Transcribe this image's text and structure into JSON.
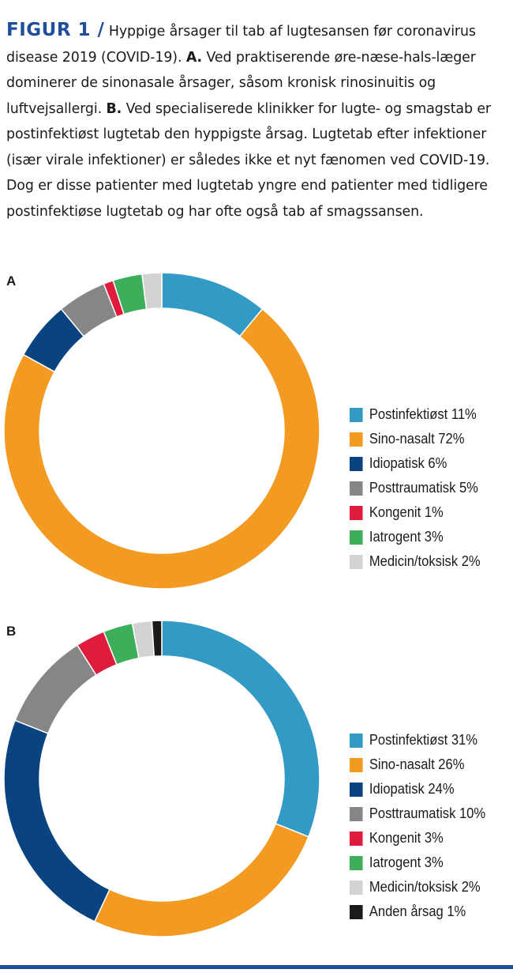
{
  "caption": {
    "label": "FIGUR 1 /",
    "text_1": " Hyppige årsager til tab af lugtesansen før corona­virus disease 2019 (COVID-19). ",
    "a_marker": "A.",
    "text_2": " Ved praktiserende øre-næse-hals-læger dominerer de sinonasale årsager, såsom kronisk rinosinuitis og luftvejsallergi. ",
    "b_marker": "B.",
    "text_3": " Ved specialiserede klinikker for lugte- og smagstab er postinfektiøst lugtetab den hyppigste årsag. Lugtetab efter infektioner (især virale infektioner) er således ikke et nyt fænomen ved COVID-19. Dog er disse patienter med lugtetab yngre end patienter med tidligere postinfektiøse lugtetab og har ofte også tab af smagssansen."
  },
  "chart_data": [
    {
      "type": "pie",
      "subtype": "donut",
      "panel": "A",
      "categories": [
        "Postinfektiøst",
        "Sino-nasalt",
        "Idiopatisk",
        "Posttraumatisk",
        "Kongenit",
        "Iatrogent",
        "Medicin/toksisk"
      ],
      "values": [
        11,
        72,
        6,
        5,
        1,
        3,
        2
      ],
      "legend_labels": [
        "Postinfektiøst 11%",
        "Sino-nasalt 72%",
        "Idiopatisk 6%",
        "Posttraumatisk 5%",
        "Kongenit 1%",
        "Iatrogent 3%",
        "Medicin/toksisk 2%"
      ],
      "colors": [
        "#3399c5",
        "#f29a22",
        "#0a4480",
        "#868686",
        "#e01c3c",
        "#3daf5a",
        "#d3d3d3"
      ],
      "legend_position": "right"
    },
    {
      "type": "pie",
      "subtype": "donut",
      "panel": "B",
      "categories": [
        "Postinfektiøst",
        "Sino-nasalt",
        "Idiopatisk",
        "Posttraumatisk",
        "Kongenit",
        "Iatrogent",
        "Medicin/toksisk",
        "Anden årsag"
      ],
      "values": [
        31,
        26,
        24,
        10,
        3,
        3,
        2,
        1
      ],
      "legend_labels": [
        "Postinfektiøst 31%",
        "Sino-nasalt 26%",
        "Idiopatisk 24%",
        "Posttraumatisk 10%",
        "Kongenit 3%",
        "Iatrogent 3%",
        "Medicin/toksisk 2%",
        "Anden årsag 1%"
      ],
      "colors": [
        "#3399c5",
        "#f29a22",
        "#0a4480",
        "#868686",
        "#e01c3c",
        "#3daf5a",
        "#d3d3d3",
        "#1a1a1a"
      ],
      "legend_position": "right"
    }
  ],
  "colors": {
    "accent": "#1f4e9c"
  }
}
